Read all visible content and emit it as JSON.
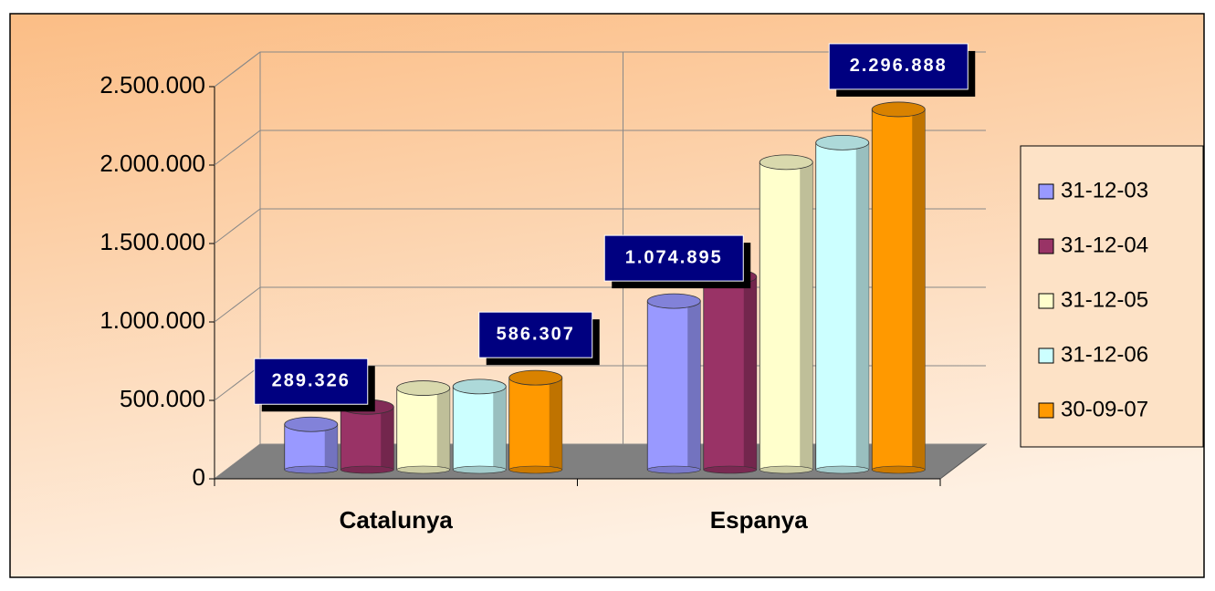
{
  "chart_data": {
    "type": "bar",
    "categories": [
      "Catalunya",
      "Espanya"
    ],
    "series": [
      {
        "name": "31-12-03",
        "color": "#9999ff",
        "values": [
          289326,
          1074895
        ],
        "value_labels": [
          "289.326",
          "1.074.895"
        ]
      },
      {
        "name": "31-12-04",
        "color": "#993366",
        "values": [
          400000,
          1230000
        ]
      },
      {
        "name": "31-12-05",
        "color": "#ffffcc",
        "values": [
          520000,
          1960000
        ]
      },
      {
        "name": "31-12-06",
        "color": "#ccffff",
        "values": [
          530000,
          2085000
        ]
      },
      {
        "name": "30-09-07",
        "color": "#ff9900",
        "values": [
          586307,
          2296888
        ],
        "value_labels": [
          "586.307",
          "2.296.888"
        ]
      }
    ],
    "ylim": [
      0,
      2500000
    ],
    "yticks": [
      0,
      {
        "value": 500000,
        "label": "500.000"
      },
      {
        "value": 1000000,
        "label": "1.000.000"
      },
      {
        "value": 1500000,
        "label": "1.500.000"
      },
      {
        "value": 2000000,
        "label": "2.000.000"
      },
      {
        "value": 2500000,
        "label": "2.500.000"
      }
    ],
    "grid": true,
    "legend": "right"
  }
}
